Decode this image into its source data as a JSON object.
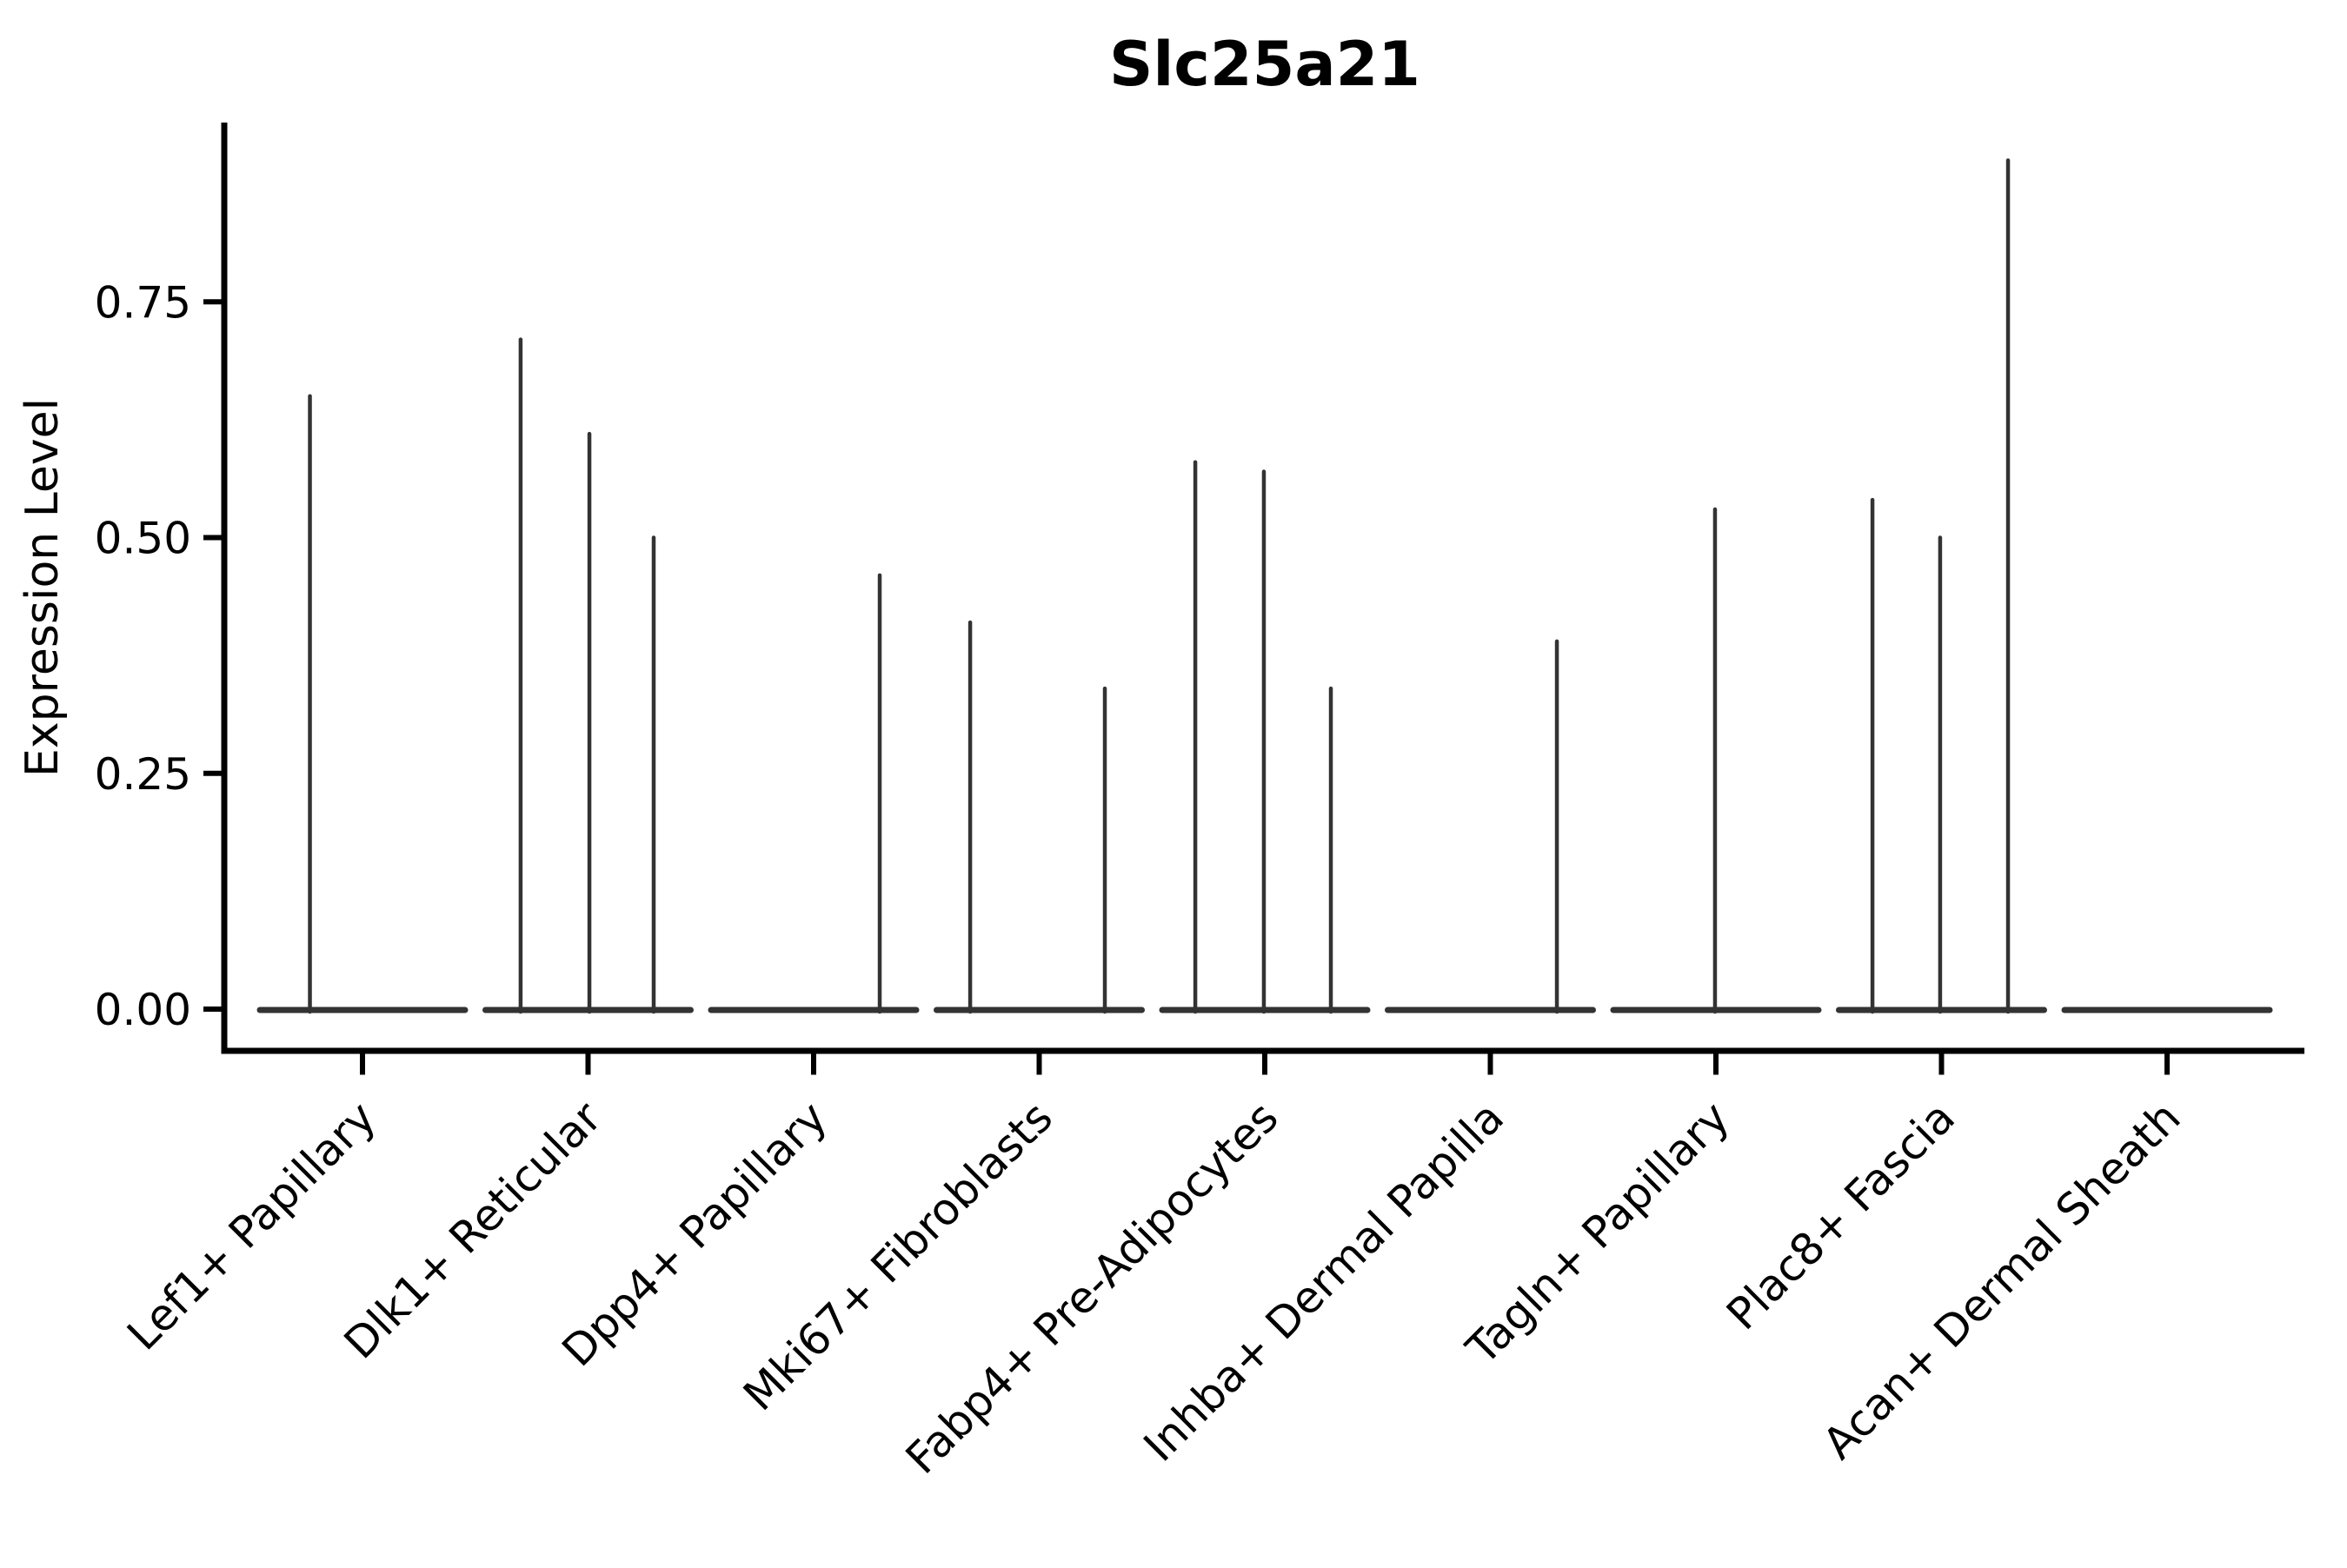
{
  "title": "Slc25a21",
  "ylabel": "Expression Level",
  "colors": {
    "axis": "#000000",
    "violin": "#333333",
    "background": "#ffffff",
    "text": "#000000"
  },
  "chart_data": {
    "type": "violin",
    "title": "Slc25a21",
    "xlabel": "",
    "ylabel": "Expression Level",
    "ylim": [
      0,
      0.94
    ],
    "grid": false,
    "legend": false,
    "yticks": [
      {
        "value": 0.0,
        "label": "0.00"
      },
      {
        "value": 0.25,
        "label": "0.25"
      },
      {
        "value": 0.5,
        "label": "0.50"
      },
      {
        "value": 0.75,
        "label": "0.75"
      }
    ],
    "categories": [
      "Lef1+ Papillary",
      "Dlk1+ Reticular",
      "Dpp4+ Papillary",
      "Mki67+ Fibroblasts",
      "Fabp4+ Pre-Adipocytes",
      "Inhba+ Dermal Papilla",
      "Tagln+ Papillary",
      "Plac8+ Fascia",
      "Acan+ Dermal Sheath"
    ],
    "series": [
      {
        "category": "Lef1+ Papillary",
        "baseline_value": 0,
        "spikes": [
          {
            "offset": -0.233,
            "value": 0.65
          }
        ]
      },
      {
        "category": "Dlk1+ Reticular",
        "baseline_value": 0,
        "spikes": [
          {
            "offset": -0.299,
            "value": 0.71
          },
          {
            "offset": 0.006,
            "value": 0.61
          },
          {
            "offset": 0.291,
            "value": 0.5
          }
        ]
      },
      {
        "category": "Dpp4+ Papillary",
        "baseline_value": 0,
        "spikes": [
          {
            "offset": 0.293,
            "value": 0.46
          }
        ]
      },
      {
        "category": "Mki67+ Fibroblasts",
        "baseline_value": 0,
        "spikes": [
          {
            "offset": -0.306,
            "value": 0.41
          },
          {
            "offset": 0.291,
            "value": 0.34
          }
        ]
      },
      {
        "category": "Fabp4+ Pre-Adipocytes",
        "baseline_value": 0,
        "spikes": [
          {
            "offset": -0.308,
            "value": 0.58
          },
          {
            "offset": -0.004,
            "value": 0.57
          },
          {
            "offset": 0.293,
            "value": 0.34
          }
        ]
      },
      {
        "category": "Inhba+ Dermal Papilla",
        "baseline_value": 0,
        "spikes": [
          {
            "offset": 0.295,
            "value": 0.39
          }
        ]
      },
      {
        "category": "Tagln+ Papillary",
        "baseline_value": 0,
        "spikes": [
          {
            "offset": -0.004,
            "value": 0.53
          }
        ]
      },
      {
        "category": "Plac8+ Fascia",
        "baseline_value": 0,
        "spikes": [
          {
            "offset": -0.306,
            "value": 0.54
          },
          {
            "offset": -0.006,
            "value": 0.5
          },
          {
            "offset": 0.295,
            "value": 0.9
          }
        ]
      },
      {
        "category": "Acan+ Dermal Sheath",
        "baseline_value": 0,
        "spikes": []
      }
    ]
  }
}
